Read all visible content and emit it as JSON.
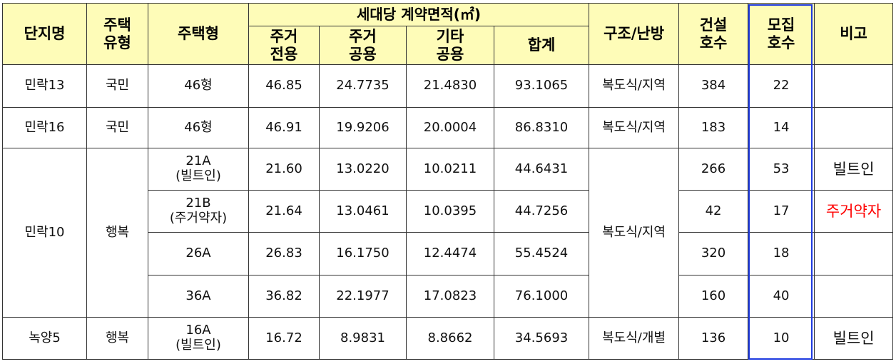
{
  "headers": {
    "complex": "단지명",
    "housing_type_l1": "주택",
    "housing_type_l2": "유형",
    "house_model": "주택형",
    "area_group": "세대당 계약면적(㎡)",
    "res_excl_l1": "주거",
    "res_excl_l2": "전용",
    "res_common_l1": "주거",
    "res_common_l2": "공용",
    "other_common_l1": "기타",
    "other_common_l2": "공용",
    "total": "합계",
    "structure": "구조/난방",
    "built_l1": "건설",
    "built_l2": "호수",
    "recruit_l1": "모집",
    "recruit_l2": "호수",
    "remark": "비고"
  },
  "rows": [
    {
      "complex": "민락13",
      "type": "국민",
      "model": "46형",
      "model_sub": "",
      "excl": "46.85",
      "common": "24.7735",
      "other": "21.4830",
      "total": "93.1065",
      "structure": "복도식/지역",
      "built": "384",
      "recruit": "22",
      "remark": ""
    },
    {
      "complex": "민락16",
      "type": "국민",
      "model": "46형",
      "model_sub": "",
      "excl": "46.91",
      "common": "19.9206",
      "other": "20.0004",
      "total": "86.8310",
      "structure": "복도식/지역",
      "built": "183",
      "recruit": "14",
      "remark": ""
    },
    {
      "complex": "민락10",
      "type": "행복",
      "model": "21A",
      "model_sub": "(빌트인)",
      "excl": "21.60",
      "common": "13.0220",
      "other": "10.0211",
      "total": "44.6431",
      "structure": "복도식/지역",
      "built": "266",
      "recruit": "53",
      "remark": "빌트인"
    },
    {
      "complex": "",
      "type": "",
      "model": "21B",
      "model_sub": "(주거약자)",
      "excl": "21.64",
      "common": "13.0461",
      "other": "10.0395",
      "total": "44.7256",
      "structure": "",
      "built": "42",
      "recruit": "17",
      "remark": "주거약자"
    },
    {
      "complex": "",
      "type": "",
      "model": "26A",
      "model_sub": "",
      "excl": "26.83",
      "common": "16.1750",
      "other": "12.4474",
      "total": "55.4524",
      "structure": "",
      "built": "320",
      "recruit": "18",
      "remark": ""
    },
    {
      "complex": "",
      "type": "",
      "model": "36A",
      "model_sub": "",
      "excl": "36.82",
      "common": "22.1977",
      "other": "17.0823",
      "total": "76.1000",
      "structure": "",
      "built": "160",
      "recruit": "40",
      "remark": ""
    },
    {
      "complex": "녹양5",
      "type": "행복",
      "model": "16A",
      "model_sub": "(빌트인)",
      "excl": "16.72",
      "common": "8.9831",
      "other": "8.8662",
      "total": "34.5693",
      "structure": "복도식/개별",
      "built": "136",
      "recruit": "10",
      "remark": "빌트인"
    }
  ],
  "colors": {
    "header_bg": "#fefcb8",
    "frame_blue": "#1f3be0",
    "remark_red": "#ff0000"
  }
}
